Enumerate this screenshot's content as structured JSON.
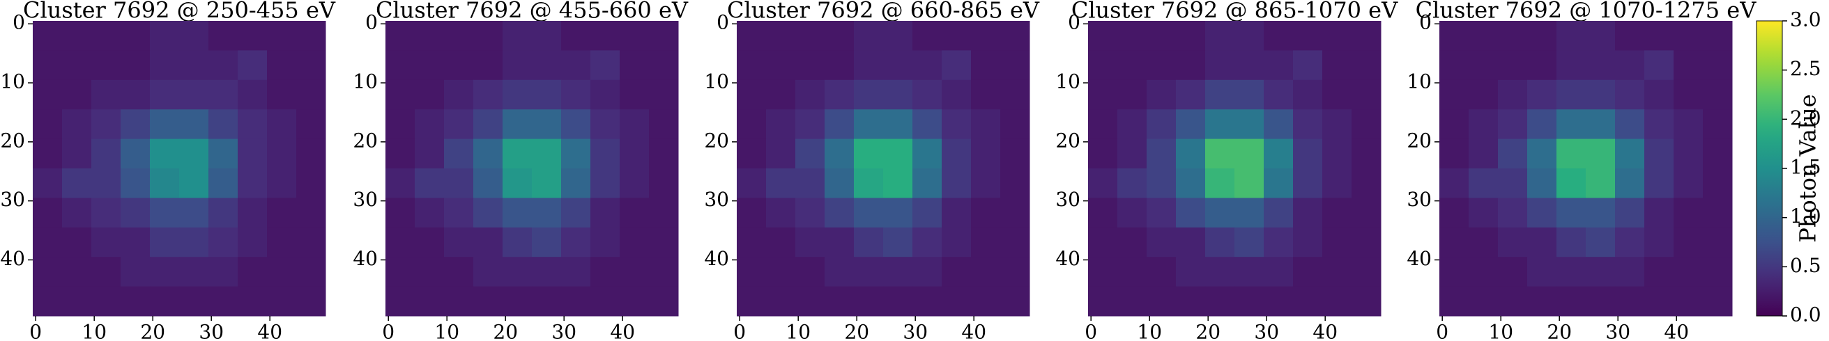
{
  "chart_data": [
    {
      "type": "heatmap",
      "title": "Cluster 7692 @ 250-455 eV",
      "xlim": [
        -0.5,
        49.5
      ],
      "ylim": [
        49.5,
        -0.5
      ],
      "xticks": [
        0,
        10,
        20,
        30,
        40
      ],
      "yticks": [
        0,
        10,
        20,
        30,
        40
      ],
      "z": [
        [
          0.2,
          0.2,
          0.2,
          0.2,
          0.3,
          0.3,
          0.2,
          0.2,
          0.2,
          0.2
        ],
        [
          0.2,
          0.2,
          0.2,
          0.2,
          0.3,
          0.3,
          0.3,
          0.4,
          0.2,
          0.2
        ],
        [
          0.2,
          0.2,
          0.3,
          0.3,
          0.4,
          0.4,
          0.4,
          0.3,
          0.2,
          0.2
        ],
        [
          0.2,
          0.3,
          0.4,
          0.6,
          0.9,
          0.9,
          0.6,
          0.4,
          0.3,
          0.2
        ],
        [
          0.2,
          0.3,
          0.5,
          0.9,
          1.5,
          1.5,
          1.0,
          0.4,
          0.3,
          0.2
        ],
        [
          0.3,
          0.5,
          0.5,
          0.8,
          1.4,
          1.5,
          0.9,
          0.4,
          0.3,
          0.2
        ],
        [
          0.2,
          0.3,
          0.4,
          0.5,
          0.7,
          0.7,
          0.5,
          0.3,
          0.2,
          0.2
        ],
        [
          0.2,
          0.2,
          0.3,
          0.3,
          0.5,
          0.5,
          0.4,
          0.3,
          0.2,
          0.2
        ],
        [
          0.2,
          0.2,
          0.2,
          0.3,
          0.3,
          0.3,
          0.3,
          0.2,
          0.2,
          0.2
        ],
        [
          0.2,
          0.2,
          0.2,
          0.2,
          0.2,
          0.2,
          0.2,
          0.2,
          0.2,
          0.2
        ]
      ]
    },
    {
      "type": "heatmap",
      "title": "Cluster 7692 @ 455-660 eV",
      "xlim": [
        -0.5,
        49.5
      ],
      "ylim": [
        49.5,
        -0.5
      ],
      "xticks": [
        0,
        10,
        20,
        30,
        40
      ],
      "yticks": [
        0,
        10,
        20,
        30,
        40
      ],
      "z": [
        [
          0.2,
          0.2,
          0.2,
          0.2,
          0.3,
          0.3,
          0.2,
          0.2,
          0.2,
          0.2
        ],
        [
          0.2,
          0.2,
          0.2,
          0.2,
          0.3,
          0.3,
          0.3,
          0.4,
          0.2,
          0.2
        ],
        [
          0.2,
          0.2,
          0.3,
          0.4,
          0.5,
          0.5,
          0.4,
          0.3,
          0.2,
          0.2
        ],
        [
          0.2,
          0.3,
          0.4,
          0.6,
          1.0,
          1.0,
          0.7,
          0.4,
          0.3,
          0.2
        ],
        [
          0.2,
          0.3,
          0.6,
          1.0,
          1.7,
          1.7,
          1.1,
          0.5,
          0.3,
          0.2
        ],
        [
          0.3,
          0.5,
          0.5,
          0.9,
          1.6,
          1.7,
          1.0,
          0.5,
          0.3,
          0.2
        ],
        [
          0.2,
          0.3,
          0.4,
          0.6,
          0.8,
          0.8,
          0.6,
          0.3,
          0.2,
          0.2
        ],
        [
          0.2,
          0.2,
          0.3,
          0.3,
          0.5,
          0.6,
          0.4,
          0.3,
          0.2,
          0.2
        ],
        [
          0.2,
          0.2,
          0.2,
          0.3,
          0.3,
          0.3,
          0.3,
          0.2,
          0.2,
          0.2
        ],
        [
          0.2,
          0.2,
          0.2,
          0.2,
          0.2,
          0.2,
          0.2,
          0.2,
          0.2,
          0.2
        ]
      ]
    },
    {
      "type": "heatmap",
      "title": "Cluster 7692 @ 660-865 eV",
      "xlim": [
        -0.5,
        49.5
      ],
      "ylim": [
        49.5,
        -0.5
      ],
      "xticks": [
        0,
        10,
        20,
        30,
        40
      ],
      "yticks": [
        0,
        10,
        20,
        30,
        40
      ],
      "z": [
        [
          0.2,
          0.2,
          0.2,
          0.2,
          0.3,
          0.3,
          0.2,
          0.2,
          0.2,
          0.2
        ],
        [
          0.2,
          0.2,
          0.2,
          0.2,
          0.3,
          0.3,
          0.3,
          0.4,
          0.2,
          0.2
        ],
        [
          0.2,
          0.2,
          0.3,
          0.4,
          0.5,
          0.5,
          0.4,
          0.3,
          0.2,
          0.2
        ],
        [
          0.2,
          0.3,
          0.4,
          0.7,
          1.1,
          1.1,
          0.7,
          0.4,
          0.3,
          0.2
        ],
        [
          0.2,
          0.3,
          0.6,
          1.1,
          1.9,
          1.9,
          1.2,
          0.5,
          0.3,
          0.2
        ],
        [
          0.3,
          0.5,
          0.5,
          1.0,
          1.8,
          1.9,
          1.1,
          0.5,
          0.3,
          0.2
        ],
        [
          0.2,
          0.3,
          0.4,
          0.6,
          0.8,
          0.8,
          0.6,
          0.3,
          0.2,
          0.2
        ],
        [
          0.2,
          0.2,
          0.3,
          0.3,
          0.5,
          0.6,
          0.4,
          0.3,
          0.2,
          0.2
        ],
        [
          0.2,
          0.2,
          0.2,
          0.3,
          0.3,
          0.3,
          0.3,
          0.2,
          0.2,
          0.2
        ],
        [
          0.2,
          0.2,
          0.2,
          0.2,
          0.2,
          0.2,
          0.2,
          0.2,
          0.2,
          0.2
        ]
      ]
    },
    {
      "type": "heatmap",
      "title": "Cluster 7692 @ 865-1070 eV",
      "xlim": [
        -0.5,
        49.5
      ],
      "ylim": [
        49.5,
        -0.5
      ],
      "xticks": [
        0,
        10,
        20,
        30,
        40
      ],
      "yticks": [
        0,
        10,
        20,
        30,
        40
      ],
      "z": [
        [
          0.2,
          0.2,
          0.2,
          0.2,
          0.3,
          0.3,
          0.2,
          0.2,
          0.2,
          0.2
        ],
        [
          0.2,
          0.2,
          0.2,
          0.2,
          0.3,
          0.3,
          0.3,
          0.4,
          0.2,
          0.2
        ],
        [
          0.2,
          0.2,
          0.3,
          0.4,
          0.6,
          0.6,
          0.4,
          0.3,
          0.2,
          0.2
        ],
        [
          0.2,
          0.3,
          0.5,
          0.8,
          1.2,
          1.2,
          0.8,
          0.4,
          0.3,
          0.2
        ],
        [
          0.2,
          0.3,
          0.6,
          1.2,
          2.1,
          2.1,
          1.3,
          0.5,
          0.3,
          0.2
        ],
        [
          0.3,
          0.5,
          0.6,
          1.1,
          2.0,
          2.1,
          1.2,
          0.5,
          0.3,
          0.2
        ],
        [
          0.2,
          0.3,
          0.4,
          0.7,
          0.9,
          0.9,
          0.6,
          0.3,
          0.2,
          0.2
        ],
        [
          0.2,
          0.2,
          0.3,
          0.3,
          0.5,
          0.6,
          0.4,
          0.3,
          0.2,
          0.2
        ],
        [
          0.2,
          0.2,
          0.2,
          0.3,
          0.3,
          0.3,
          0.3,
          0.2,
          0.2,
          0.2
        ],
        [
          0.2,
          0.2,
          0.2,
          0.2,
          0.2,
          0.2,
          0.2,
          0.2,
          0.2,
          0.2
        ]
      ]
    },
    {
      "type": "heatmap",
      "title": "Cluster 7692 @ 1070-1275 eV",
      "xlim": [
        -0.5,
        49.5
      ],
      "ylim": [
        49.5,
        -0.5
      ],
      "xticks": [
        0,
        10,
        20,
        30,
        40
      ],
      "yticks": [
        0,
        10,
        20,
        30,
        40
      ],
      "z": [
        [
          0.2,
          0.2,
          0.2,
          0.2,
          0.3,
          0.3,
          0.2,
          0.2,
          0.2,
          0.2
        ],
        [
          0.2,
          0.2,
          0.2,
          0.2,
          0.3,
          0.3,
          0.3,
          0.4,
          0.2,
          0.2
        ],
        [
          0.2,
          0.2,
          0.3,
          0.4,
          0.5,
          0.5,
          0.4,
          0.3,
          0.2,
          0.2
        ],
        [
          0.2,
          0.3,
          0.4,
          0.7,
          1.1,
          1.1,
          0.7,
          0.4,
          0.3,
          0.2
        ],
        [
          0.2,
          0.3,
          0.6,
          1.1,
          2.0,
          2.0,
          1.2,
          0.5,
          0.3,
          0.2
        ],
        [
          0.3,
          0.5,
          0.5,
          1.0,
          1.9,
          2.0,
          1.1,
          0.5,
          0.3,
          0.2
        ],
        [
          0.2,
          0.3,
          0.4,
          0.6,
          0.8,
          0.8,
          0.6,
          0.3,
          0.2,
          0.2
        ],
        [
          0.2,
          0.2,
          0.3,
          0.3,
          0.5,
          0.6,
          0.4,
          0.3,
          0.2,
          0.2
        ],
        [
          0.2,
          0.2,
          0.2,
          0.3,
          0.3,
          0.3,
          0.3,
          0.2,
          0.2,
          0.2
        ],
        [
          0.2,
          0.2,
          0.2,
          0.2,
          0.2,
          0.2,
          0.2,
          0.2,
          0.2,
          0.2
        ]
      ]
    }
  ],
  "colorbar": {
    "label": "Photon Value",
    "colormap": "viridis",
    "ylim": [
      0,
      3
    ],
    "yticks": [
      {
        "value": 0,
        "label": "0.0"
      },
      0.5,
      {
        "value": 1,
        "label": "1.0"
      },
      1.5,
      {
        "value": 2,
        "label": "2.0"
      },
      2.5,
      {
        "value": 3,
        "label": "3.0"
      }
    ]
  }
}
